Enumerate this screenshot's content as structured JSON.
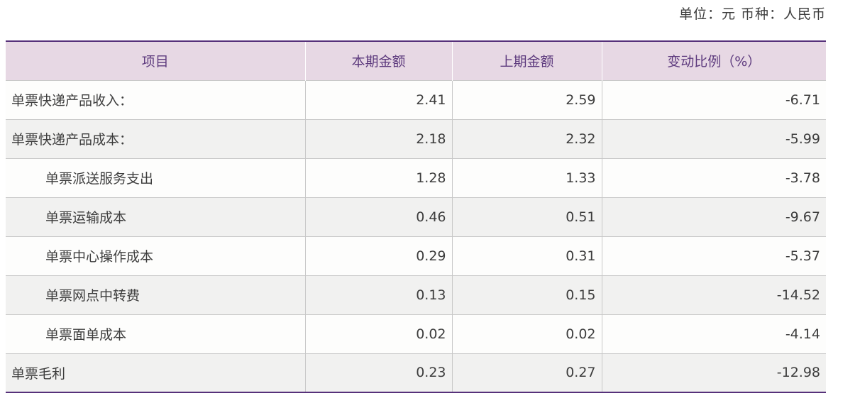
{
  "note": "单位：元 币种：人民币",
  "colors": {
    "accent_purple": "#56317a",
    "header_bg": "#e7d8e4",
    "header_text": "#5e3b7e",
    "alt_row_bg": "#f1f1f0",
    "body_text": "#3d3d3d"
  },
  "table": {
    "columns": [
      "项目",
      "本期金额",
      "上期金额",
      "变动比例（%）"
    ],
    "rows": [
      {
        "item": "单票快递产品收入：",
        "current": "2.41",
        "prior": "2.59",
        "change": "-6.71"
      },
      {
        "item": "单票快递产品成本：",
        "current": "2.18",
        "prior": "2.32",
        "change": "-5.99"
      },
      {
        "item": "单票派送服务支出",
        "current": "1.28",
        "prior": "1.33",
        "change": "-3.78"
      },
      {
        "item": "单票运输成本",
        "current": "0.46",
        "prior": "0.51",
        "change": "-9.67"
      },
      {
        "item": "单票中心操作成本",
        "current": "0.29",
        "prior": "0.31",
        "change": "-5.37"
      },
      {
        "item": "单票网点中转费",
        "current": "0.13",
        "prior": "0.15",
        "change": "-14.52"
      },
      {
        "item": "单票面单成本",
        "current": "0.02",
        "prior": "0.02",
        "change": "-4.14"
      },
      {
        "item": "单票毛利",
        "current": "0.23",
        "prior": "0.27",
        "change": "-12.98"
      }
    ]
  }
}
